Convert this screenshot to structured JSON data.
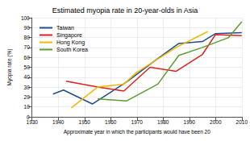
{
  "chart_data": {
    "type": "line",
    "title": "Estimated myopia rate in 20-year-olds in Asia",
    "x_label": "Approximate year in which the participants would have been 20",
    "y_label": "Myopia rate (%)",
    "xlim": [
      1930,
      2010
    ],
    "xticks": [
      1930,
      1940,
      1950,
      1960,
      1970,
      1980,
      1990,
      2000,
      2010
    ],
    "ylim": [
      0,
      100
    ],
    "yticks": [
      0,
      10,
      20,
      30,
      40,
      50,
      60,
      70,
      80,
      90,
      100
    ],
    "grid": true,
    "legend": "upper left",
    "series": [
      {
        "name": "Taiwan",
        "color": "#1f4e8c",
        "x": [
          1938,
          1942,
          1953,
          1966,
          1976,
          1986,
          1995,
          2000,
          2010
        ],
        "values": [
          23,
          27,
          13,
          35,
          55,
          74,
          76,
          84,
          85
        ]
      },
      {
        "name": "Singapore",
        "color": "#e0201c",
        "x": [
          1943,
          1955,
          1965,
          1975,
          1985,
          1995,
          2000,
          2010
        ],
        "values": [
          36,
          30,
          26,
          50,
          46,
          63,
          83,
          82
        ]
      },
      {
        "name": "Hong Kong",
        "color": "#f2b800",
        "x": [
          1945,
          1955,
          1965,
          1970,
          1985,
          1997
        ],
        "values": [
          9,
          30,
          33,
          45,
          70,
          86
        ]
      },
      {
        "name": "South Korea",
        "color": "#5a9e2e",
        "x": [
          1955,
          1966,
          1978,
          1986,
          1995,
          2005,
          2010
        ],
        "values": [
          18,
          16,
          33,
          62,
          70,
          80,
          96
        ]
      }
    ]
  }
}
